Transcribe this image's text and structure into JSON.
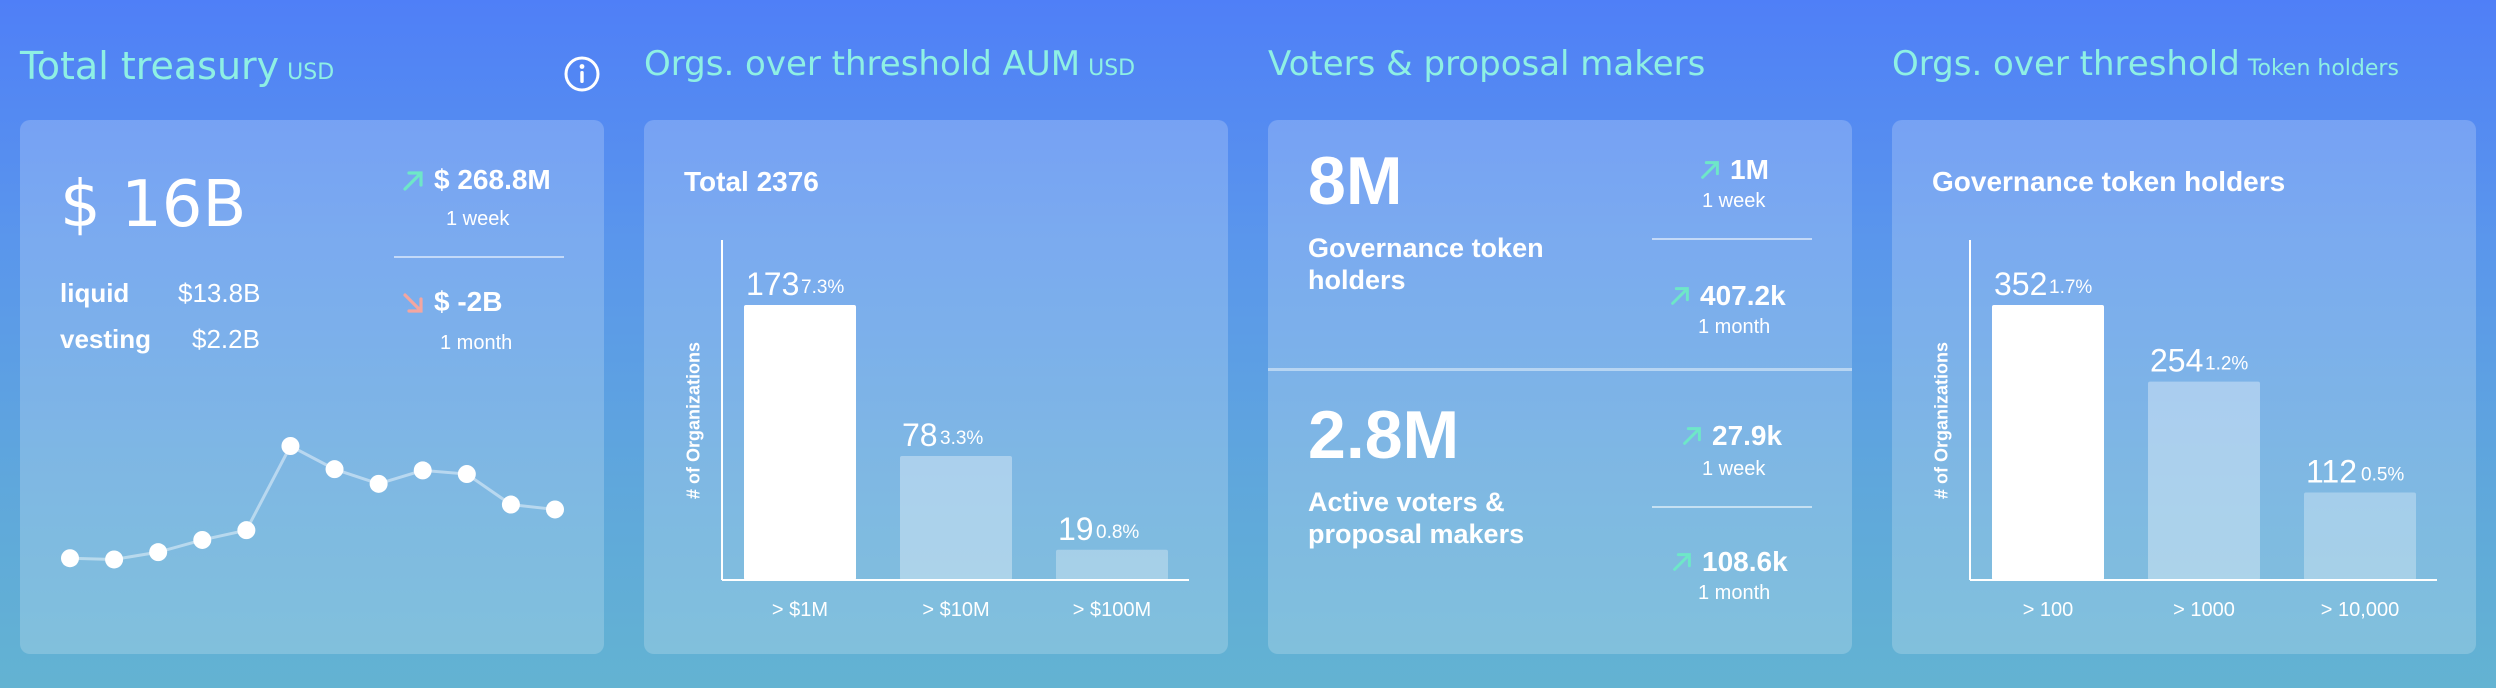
{
  "treasury": {
    "title": "Total treasury",
    "unit": "USD",
    "amount": "$ 16B",
    "liquid_label": "liquid",
    "liquid_value": "$13.8B",
    "vesting_label": "vesting",
    "vesting_value": "$2.2B",
    "delta_1": {
      "value": "$ 268.8M",
      "period": "1 week",
      "direction": "up"
    },
    "delta_2": {
      "value": "$ -2B",
      "period": "1 month",
      "direction": "down"
    },
    "sparkline": [
      8,
      7,
      13,
      23,
      31,
      100,
      81,
      69,
      80,
      77,
      52,
      48
    ]
  },
  "aum": {
    "title": "Orgs. over threshold AUM",
    "unit": "USD",
    "subtitle": "Total 2376",
    "ylabel": "# of Organizations",
    "bars": [
      {
        "value": "173",
        "pct": "7.3%",
        "label": "> $1M",
        "n": 173
      },
      {
        "value": "78",
        "pct": "3.3%",
        "label": "> $10M",
        "n": 78
      },
      {
        "value": "19",
        "pct": "0.8%",
        "label": "> $100M",
        "n": 19
      }
    ]
  },
  "voters": {
    "title": "Voters & proposal makers",
    "gov": {
      "value": "8M",
      "desc": "Governance token holders",
      "week": {
        "value": "1M",
        "period": "1 week"
      },
      "month": {
        "value": "407.2k",
        "period": "1 month"
      }
    },
    "active": {
      "value": "2.8M",
      "desc": "Active voters & proposal makers",
      "week": {
        "value": "27.9k",
        "period": "1 week"
      },
      "month": {
        "value": "108.6k",
        "period": "1 month"
      }
    }
  },
  "holders": {
    "title": "Orgs. over threshold",
    "unit": "Token holders",
    "subtitle": "Governance token holders",
    "ylabel": "# of Organizations",
    "bars": [
      {
        "value": "352",
        "pct": "1.7%",
        "label": "> 100",
        "n": 352
      },
      {
        "value": "254",
        "pct": "1.2%",
        "label": "> 1000",
        "n": 254
      },
      {
        "value": "112",
        "pct": "0.5%",
        "label": "> 10,000",
        "n": 112
      }
    ]
  },
  "colors": {
    "title": "#8ef0e4",
    "up_arrow": "#6ee7c8",
    "down_arrow": "#f4a6a0",
    "bar_primary": "#ffffff"
  },
  "icons": {
    "info": "info-icon",
    "up": "arrow-up-right-icon",
    "down": "arrow-down-right-icon"
  }
}
